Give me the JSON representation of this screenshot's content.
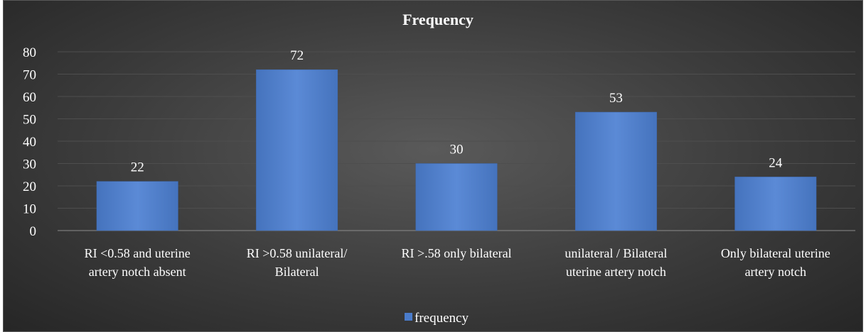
{
  "chart_data": {
    "type": "bar",
    "title": "Frequency",
    "xlabel": "",
    "ylabel": "",
    "categories": [
      [
        "RI <0.58 and uterine",
        "artery notch absent"
      ],
      [
        "RI >0.58 unilateral/",
        "Bilateral"
      ],
      [
        "RI >.58 only bilateral"
      ],
      [
        "unilateral / Bilateral",
        "uterine artery notch"
      ],
      [
        "Only bilateral  uterine",
        "artery notch"
      ]
    ],
    "series": [
      {
        "name": "frequency",
        "values": [
          22,
          72,
          30,
          53,
          24
        ],
        "color": "#4a7ccb"
      }
    ],
    "ylim": [
      0,
      80
    ],
    "yticks": [
      0,
      10,
      20,
      30,
      40,
      50,
      60,
      70,
      80
    ],
    "data_labels": true,
    "grid": true,
    "legend": "bottom-center"
  }
}
